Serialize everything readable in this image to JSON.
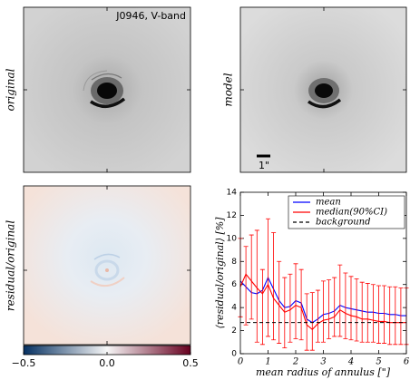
{
  "panels": [
    {
      "ylabel": "original",
      "annotation": "J0946, V-band"
    },
    {
      "ylabel": "model",
      "scalebar_label": "1\""
    },
    {
      "ylabel": "residual/original"
    }
  ],
  "chart_data": [
    {
      "type": "colorbar",
      "colors": [
        "#053061",
        "#f7f7f7",
        "#67001f"
      ],
      "xlim": [
        -0.5,
        0.5
      ],
      "xticks": [
        {
          "value": -0.5,
          "label": "−0.5"
        },
        {
          "value": 0,
          "label": "0.0"
        },
        {
          "value": 0.5,
          "label": "0.5"
        }
      ]
    },
    {
      "type": "line",
      "ylabel": "⟨residual/original⟩ [%]",
      "xlabel": "mean radius of annulus [\"]",
      "xlim": [
        0,
        6
      ],
      "xticks": [
        0,
        1,
        2,
        3,
        4,
        5,
        6
      ],
      "ylim": [
        0,
        14
      ],
      "yticks": [
        0,
        2,
        4,
        6,
        8,
        10,
        12,
        14
      ],
      "legend": "upper right",
      "x": [
        0,
        0.2,
        0.4,
        0.6,
        0.8,
        1.0,
        1.2,
        1.4,
        1.6,
        1.8,
        2.0,
        2.2,
        2.4,
        2.6,
        2.8,
        3.0,
        3.2,
        3.4,
        3.6,
        3.8,
        4.0,
        4.2,
        4.4,
        4.6,
        4.8,
        5.0,
        5.2,
        5.4,
        5.6,
        5.8,
        6.0
      ],
      "series": [
        {
          "name": "mean",
          "color": "#0000ff",
          "values": [
            6.3,
            5.8,
            5.3,
            5.2,
            5.5,
            6.6,
            5.6,
            4.6,
            4.0,
            4.1,
            4.6,
            4.4,
            3.0,
            2.7,
            3.0,
            3.4,
            3.5,
            3.7,
            4.2,
            4.0,
            3.9,
            3.8,
            3.7,
            3.6,
            3.6,
            3.5,
            3.5,
            3.4,
            3.4,
            3.3,
            3.3
          ]
        },
        {
          "name": "median(90%CI)",
          "color": "#ff0000",
          "values": [
            5.8,
            6.9,
            6.3,
            5.7,
            5.2,
            6.0,
            4.8,
            4.2,
            3.6,
            3.8,
            4.2,
            4.0,
            2.5,
            2.1,
            2.6,
            2.9,
            3.0,
            3.2,
            3.8,
            3.5,
            3.3,
            3.2,
            3.0,
            3.0,
            2.9,
            2.8,
            2.8,
            2.7,
            2.7,
            2.7,
            2.7
          ],
          "ci_low": [
            3.2,
            2.5,
            3.0,
            1.0,
            0.8,
            1.5,
            1.2,
            0.9,
            0.5,
            1.0,
            1.3,
            1.2,
            0.3,
            0.3,
            1.0,
            1.0,
            1.3,
            1.5,
            1.5,
            1.3,
            1.2,
            1.1,
            1.0,
            1.0,
            1.0,
            0.9,
            0.9,
            0.8,
            0.8,
            0.8,
            0.8
          ],
          "ci_high": [
            10.0,
            9.3,
            10.3,
            10.7,
            7.3,
            11.7,
            10.5,
            8.0,
            6.6,
            6.9,
            7.8,
            7.3,
            5.2,
            5.3,
            5.5,
            6.3,
            6.4,
            6.6,
            7.7,
            7.0,
            6.7,
            6.5,
            6.2,
            6.1,
            6.0,
            5.9,
            5.9,
            5.8,
            5.8,
            5.7,
            5.7
          ]
        },
        {
          "name": "background",
          "color": "#000000",
          "dashed": true,
          "value": 2.7
        }
      ]
    }
  ]
}
